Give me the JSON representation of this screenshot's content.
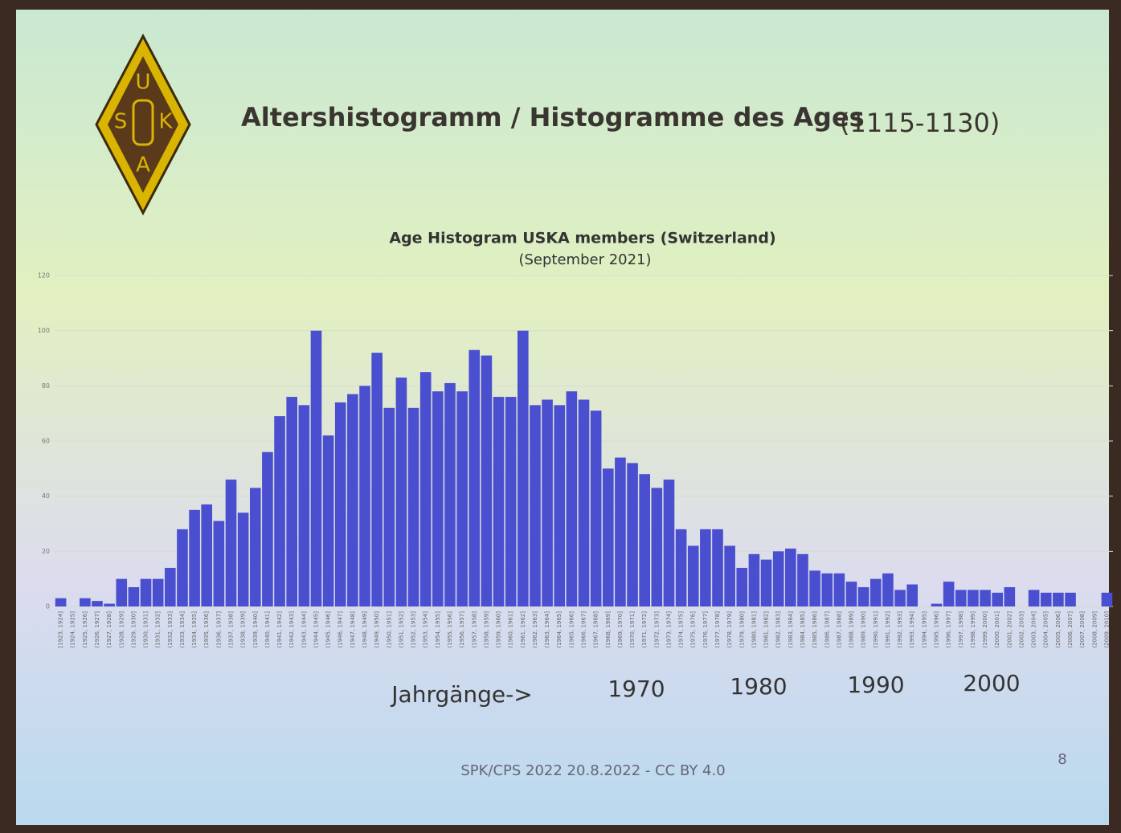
{
  "slide": {
    "title": "Altershistogramm / Histogramme des Ages",
    "title_note": "(1115-1130)",
    "logo_letters": [
      "U",
      "S",
      "K",
      "A"
    ],
    "footer": "SPK/CPS 2022 20.8.2022 - CC BY 4.0",
    "page_number": "8"
  },
  "chart_data": {
    "type": "bar",
    "title": "Age Histogram USKA members (Switzerland)",
    "subtitle": "(September 2021)",
    "color": "#4a4fd0",
    "categories": [
      "[1923, 1924]",
      "(1924, 1925]",
      "(1925, 1926]",
      "(1926, 1927]",
      "(1927, 1928]",
      "(1928, 1929]",
      "(1929, 1930]",
      "(1930, 1931]",
      "(1931, 1932]",
      "(1932, 1933]",
      "(1933, 1934]",
      "(1934, 1935]",
      "(1935, 1936]",
      "(1936, 1937]",
      "(1937, 1938]",
      "(1938, 1939]",
      "(1939, 1940]",
      "(1940, 1941]",
      "(1941, 1942]",
      "(1942, 1943]",
      "(1943, 1944]",
      "(1944, 1945]",
      "(1945, 1946]",
      "(1946, 1947]",
      "(1947, 1948]",
      "(1948, 1949]",
      "(1949, 1950]",
      "(1950, 1951]",
      "(1951, 1952]",
      "(1952, 1953]",
      "(1953, 1954]",
      "(1954, 1955]",
      "(1955, 1956]",
      "(1956, 1957]",
      "(1957, 1958]",
      "(1958, 1959]",
      "(1959, 1960]",
      "(1960, 1961]",
      "(1961, 1962]",
      "(1962, 1963]",
      "(1963, 1964]",
      "(1964, 1965]",
      "(1965, 1966]",
      "(1966, 1967]",
      "(1967, 1968]",
      "(1968, 1969]",
      "(1969, 1970]",
      "(1970, 1971]",
      "(1971, 1972]",
      "(1972, 1973]",
      "(1973, 1974]",
      "(1974, 1975]",
      "(1975, 1976]",
      "(1976, 1977]",
      "(1977, 1978]",
      "(1978, 1979]",
      "(1979, 1980]",
      "(1980, 1981]",
      "(1981, 1982]",
      "(1982, 1983]",
      "(1983, 1984]",
      "(1984, 1985]",
      "(1985, 1986]",
      "(1986, 1987]",
      "(1987, 1988]",
      "(1988, 1989]",
      "(1989, 1990]",
      "(1990, 1991]",
      "(1991, 1992]",
      "(1992, 1993]",
      "(1993, 1994]",
      "(1994, 1995]",
      "(1995, 1996]",
      "(1996, 1997]",
      "(1997, 1998]",
      "(1998, 1999]",
      "(1999, 2000]",
      "(2000, 2001]",
      "(2001, 2002]",
      "(2002, 2003]",
      "(2003, 2004]",
      "(2004, 2005]",
      "(2005, 2006]",
      "(2006, 2007]",
      "(2007, 2008]",
      "(2008, 2009]",
      "(2009, 2010]"
    ],
    "values": [
      3,
      0,
      3,
      2,
      1,
      10,
      7,
      10,
      10,
      14,
      28,
      35,
      37,
      31,
      46,
      34,
      43,
      56,
      69,
      76,
      73,
      100,
      62,
      74,
      77,
      80,
      92,
      72,
      83,
      72,
      85,
      78,
      81,
      78,
      93,
      91,
      76,
      76,
      100,
      73,
      75,
      73,
      78,
      75,
      71,
      50,
      54,
      52,
      48,
      43,
      46,
      28,
      22,
      28,
      28,
      22,
      14,
      19,
      17,
      20,
      21,
      19,
      13,
      12,
      12,
      9,
      7,
      10,
      12,
      6,
      8,
      0,
      1,
      9,
      6,
      6,
      6,
      5,
      7,
      0,
      6,
      5,
      5,
      5,
      0,
      0,
      5
    ],
    "ylim": [
      0,
      120
    ],
    "yticks": [
      0,
      20,
      40,
      60,
      80,
      100,
      120
    ],
    "grid": true,
    "annotations": [
      "Jahrgänge->",
      "1970",
      "1980",
      "1990",
      "2000"
    ]
  }
}
